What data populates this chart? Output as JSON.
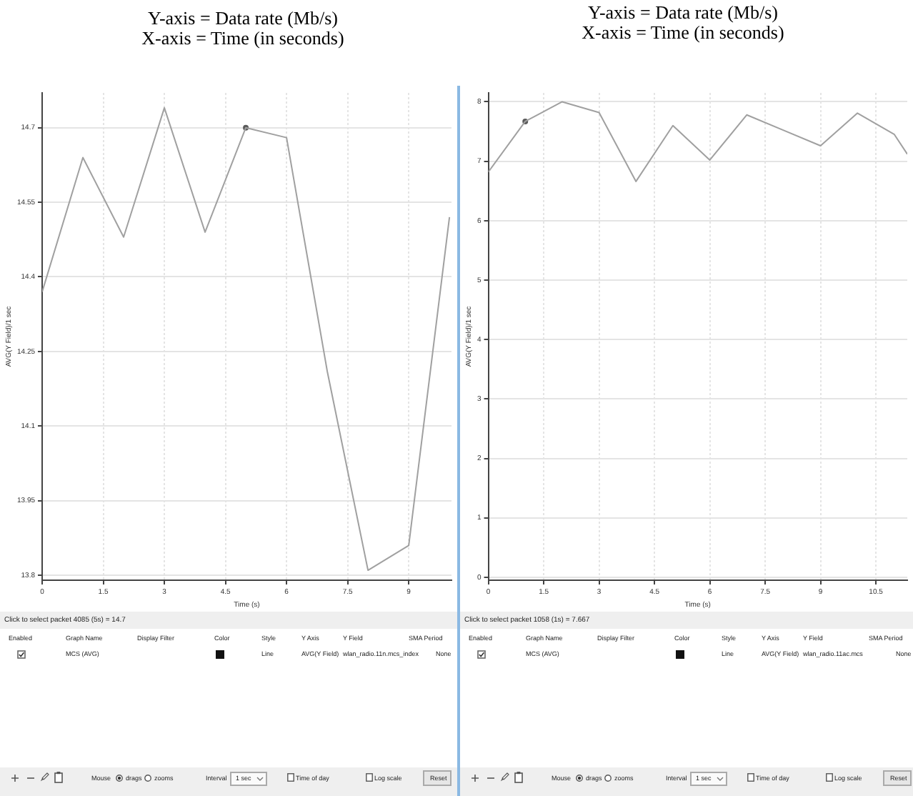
{
  "chart_data": [
    {
      "type": "line",
      "title": "Y-axis = Data rate (Mb/s)",
      "subtitle": "X-axis = Time (in seconds)",
      "xlabel": "Time (s)",
      "ylabel": "AVG(Y Field)/1 sec",
      "x": [
        0,
        1,
        2,
        3,
        4,
        5,
        6,
        7,
        8,
        9,
        10
      ],
      "series": [
        {
          "color": "#a0a0a0",
          "values": [
            14.37,
            14.64,
            14.48,
            14.74,
            14.49,
            14.7,
            14.68,
            14.21,
            13.81,
            13.86,
            14.52
          ]
        },
        {
          "type": "scatter",
          "x": [
            5
          ],
          "values": [
            14.7
          ],
          "color": "#5a5a5a"
        }
      ],
      "xlim": [
        0,
        10.05
      ],
      "xticks": [
        0,
        1.5,
        3,
        4.5,
        6,
        7.5,
        9
      ],
      "ylim": [
        13.79,
        14.77
      ],
      "yticks": [
        13.8,
        13.95,
        14.1,
        14.25,
        14.4,
        14.55,
        14.7
      ],
      "grid": true,
      "annotations": [
        "Click to select packet 4085 (5s) = 14.7",
        "Enabled",
        "Graph Name",
        "Display Filter",
        "Color",
        "Style",
        "Y Axis",
        "Y Field",
        "SMA Period",
        "MCS (AVG)",
        "Line",
        "AVG(Y Field)",
        "wlan_radio.11n.mcs_index",
        "None",
        "Mouse",
        "drags",
        "zooms",
        "Interval",
        "1 sec",
        "Time of day",
        "Log scale",
        "Reset"
      ]
    },
    {
      "type": "line",
      "title": "Y-axis = Data rate (Mb/s)",
      "subtitle": "X-axis = Time (in seconds)",
      "xlabel": "Time (s)",
      "ylabel": "AVG(Y Field)/1 sec",
      "x": [
        0,
        1,
        2,
        3,
        4,
        5,
        6,
        7,
        8,
        9,
        10,
        11,
        11.35
      ],
      "series": [
        {
          "color": "#a0a0a0",
          "values": [
            6.82,
            7.67,
            8.0,
            7.82,
            6.66,
            7.6,
            7.02,
            7.78,
            7.52,
            7.26,
            7.81,
            7.45,
            7.12
          ]
        },
        {
          "type": "scatter",
          "x": [
            1
          ],
          "values": [
            7.67
          ],
          "color": "#5a5a5a"
        }
      ],
      "xlim": [
        0,
        11.35
      ],
      "xticks": [
        0,
        1.5,
        3,
        4.5,
        6,
        7.5,
        9,
        10.5
      ],
      "ylim": [
        -0.05,
        8.15
      ],
      "yticks": [
        0,
        1,
        2,
        3,
        4,
        5,
        6,
        7,
        8
      ],
      "grid": true,
      "annotations": [
        "Click to select packet 1058 (1s) = 7.667",
        "Enabled",
        "Graph Name",
        "Display Filter",
        "Color",
        "Style",
        "Y Axis",
        "Y Field",
        "SMA Period",
        "MCS (AVG)",
        "Line",
        "AVG(Y Field)",
        "wlan_radio.11ac.mcs",
        "None",
        "Mouse",
        "drags",
        "zooms",
        "Interval",
        "1 sec",
        "Time of day",
        "Log scale",
        "Reset"
      ]
    }
  ]
}
